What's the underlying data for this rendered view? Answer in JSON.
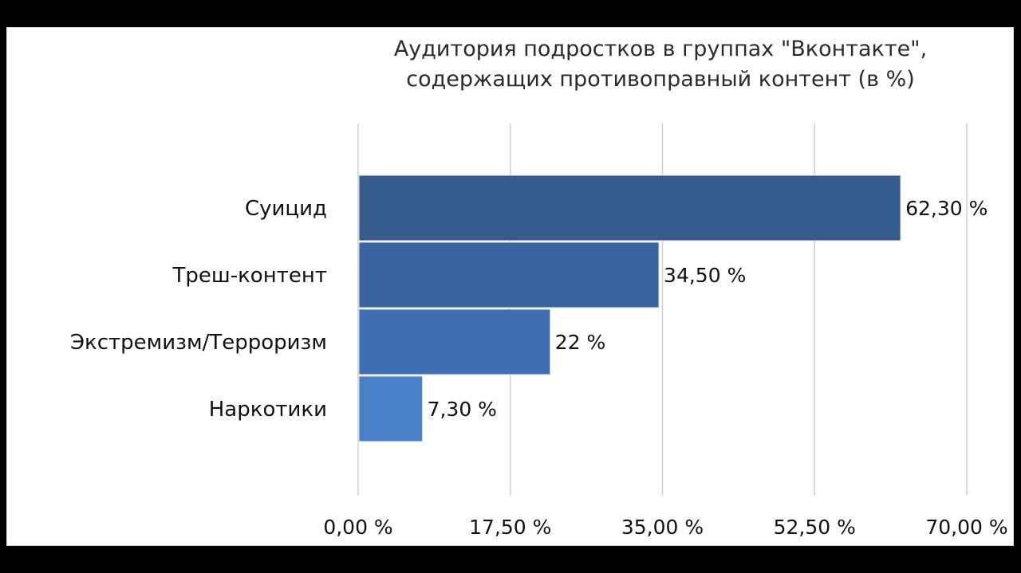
{
  "chart_data": {
    "type": "bar",
    "orientation": "horizontal",
    "title_lines": [
      "Аудитория подростков в группах  \"Вконтакте\",",
      "содержащих противоправный контент (в %)"
    ],
    "categories": [
      "Суицид",
      "Треш-контент",
      "Экстремизм/Терроризм",
      "Наркотики"
    ],
    "values": [
      62.3,
      34.5,
      22,
      7.3
    ],
    "value_labels": [
      "62,30 %",
      "34,50 %",
      "22 %",
      "7,30 %"
    ],
    "bar_colors": [
      "#365b8d",
      "#3a64a0",
      "#3f6fb3",
      "#4a80c8"
    ],
    "xlim": [
      0,
      70
    ],
    "xticks": [
      0,
      17.5,
      35,
      52.5,
      70
    ],
    "xtick_labels": [
      "0,00 %",
      "17,50 %",
      "35,00 %",
      "52,50 %",
      "70,00 %"
    ],
    "grid": true,
    "legend": "none",
    "xlabel": "",
    "ylabel": ""
  }
}
